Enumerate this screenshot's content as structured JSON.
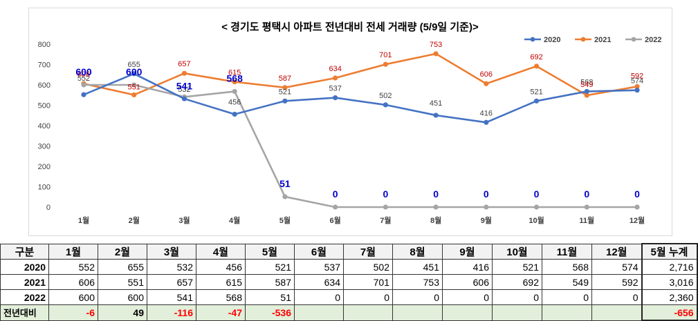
{
  "chart_data": {
    "type": "line",
    "title": "< 경기도 평택시 아파트 전년대비 전세 거래량 (5/9일 기준)>",
    "categories": [
      "1월",
      "2월",
      "3월",
      "4월",
      "5월",
      "6월",
      "7월",
      "8월",
      "9월",
      "10월",
      "11월",
      "12월"
    ],
    "ylim": [
      0,
      800
    ],
    "yticks": [
      0,
      100,
      200,
      300,
      400,
      500,
      600,
      700,
      800
    ],
    "grid": false,
    "legend": "top-right",
    "series": [
      {
        "name": "2020",
        "color": "#4472c4",
        "values": [
          552,
          655,
          532,
          456,
          521,
          537,
          502,
          451,
          416,
          521,
          568,
          574
        ],
        "labels": [
          "552",
          "655",
          "532",
          "456",
          "521",
          "537",
          "502",
          "451",
          "416",
          "521",
          "568",
          "574"
        ]
      },
      {
        "name": "2021",
        "color": "#ed7d31",
        "values": [
          606,
          551,
          657,
          615,
          587,
          634,
          701,
          753,
          606,
          692,
          549,
          592
        ],
        "labels": [
          "606",
          "551",
          "657",
          "615",
          "587",
          "634",
          "701",
          "753",
          "606",
          "692",
          "549",
          "592"
        ]
      },
      {
        "name": "2022",
        "color": "#a5a5a5",
        "values": [
          600,
          600,
          541,
          568,
          51,
          0,
          0,
          0,
          0,
          0,
          0,
          0
        ],
        "labels": [
          "600",
          "600",
          "541",
          "568",
          "51",
          "0",
          "0",
          "0",
          "0",
          "0",
          "0",
          "0"
        ]
      }
    ]
  },
  "table": {
    "headers": [
      "구분",
      "1월",
      "2월",
      "3월",
      "4월",
      "5월",
      "6월",
      "7월",
      "8월",
      "9월",
      "10월",
      "11월",
      "12월",
      "5월 누계"
    ],
    "rows": [
      {
        "label": "2020",
        "cells": [
          "552",
          "655",
          "532",
          "456",
          "521",
          "537",
          "502",
          "451",
          "416",
          "521",
          "568",
          "574"
        ],
        "total": "2,716"
      },
      {
        "label": "2021",
        "cells": [
          "606",
          "551",
          "657",
          "615",
          "587",
          "634",
          "701",
          "753",
          "606",
          "692",
          "549",
          "592"
        ],
        "total": "3,016"
      },
      {
        "label": "2022",
        "cells": [
          "600",
          "600",
          "541",
          "568",
          "51",
          "0",
          "0",
          "0",
          "0",
          "0",
          "0",
          "0"
        ],
        "total": "2,360"
      }
    ],
    "diff": {
      "label": "전년대비",
      "cells": [
        "-6",
        "49",
        "-116",
        "-47",
        "-536",
        "",
        "",
        "",
        "",
        "",
        "",
        ""
      ],
      "total": "-656"
    }
  }
}
